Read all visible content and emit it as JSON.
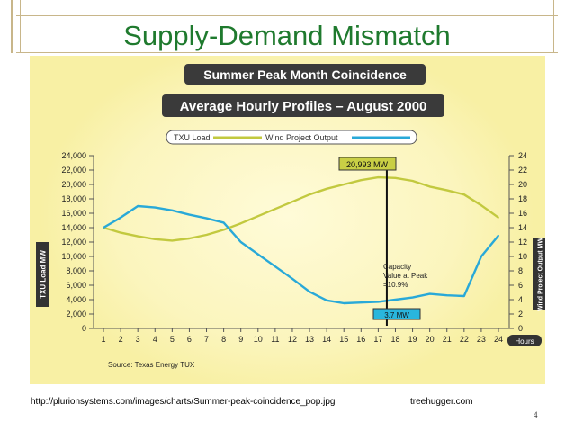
{
  "slide": {
    "title": "Supply-Demand Mismatch",
    "url": "http://plurionsystems.com/images/charts/Summer-peak-coincidence_pop.jpg",
    "credit": "treehugger.com",
    "page_number": "4"
  },
  "colors": {
    "title": "#1f7a2e",
    "panel": "#f8f0a4",
    "glow": "#fffbd8",
    "txu_line": "#c2c93f",
    "wind_line": "#29a9d8",
    "banner": "#3a3a3a",
    "peak_label_bg": "#c9cf45",
    "min_label_bg": "#29b6dd"
  },
  "chart_data": {
    "type": "line",
    "title": "Summer Peak Month Coincidence",
    "subtitle": "Average Hourly Profiles – August 2000",
    "x": [
      1,
      2,
      3,
      4,
      5,
      6,
      7,
      8,
      9,
      10,
      11,
      12,
      13,
      14,
      15,
      16,
      17,
      18,
      19,
      20,
      21,
      22,
      23,
      24
    ],
    "xlabel": "Hours",
    "ylabel_left": "TXU Load MW",
    "ylabel_right": "Wind Project Output MW",
    "ylim_left": [
      0,
      24000
    ],
    "ylim_right": [
      0,
      24
    ],
    "yticks_left": [
      "0",
      "2,000",
      "4,000",
      "6,000",
      "8,000",
      "10,000",
      "12,000",
      "14,000",
      "16,000",
      "18,000",
      "20,000",
      "22,000",
      "24,000"
    ],
    "yticks_right": [
      "0",
      "2",
      "4",
      "6",
      "8",
      "10",
      "12",
      "14",
      "16",
      "18",
      "20",
      "22",
      "24"
    ],
    "legend": "top",
    "grid": false,
    "series": [
      {
        "name": "TXU Load",
        "axis": "left",
        "values": [
          14000,
          13300,
          12800,
          12400,
          12200,
          12500,
          13000,
          13700,
          14600,
          15600,
          16600,
          17600,
          18600,
          19400,
          20000,
          20600,
          20993,
          20900,
          20500,
          19700,
          19200,
          18600,
          17100,
          15400
        ]
      },
      {
        "name": "Wind Project Output",
        "axis": "right",
        "values": [
          14.0,
          15.4,
          17.0,
          16.8,
          16.4,
          15.8,
          15.3,
          14.7,
          12.0,
          10.3,
          8.6,
          6.9,
          5.1,
          3.9,
          3.5,
          3.6,
          3.7,
          4.0,
          4.3,
          4.8,
          4.6,
          4.5,
          10.0,
          12.9
        ]
      }
    ],
    "annotations": {
      "peak_label": "20,993 MW",
      "min_label": "3.7 MW",
      "capacity_text": [
        "Capacity",
        "Value at Peak",
        "=10.9%"
      ],
      "marker_hour": 17.5,
      "source": "Source: Texas Energy TUX"
    }
  }
}
